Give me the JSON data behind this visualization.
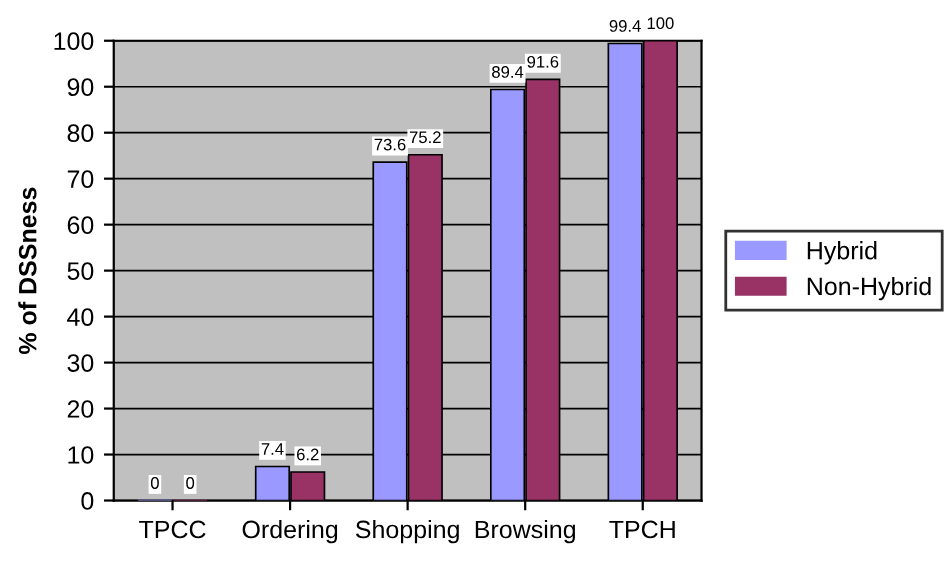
{
  "chart_data": {
    "type": "bar",
    "ylabel": "% of DSSness",
    "categories": [
      "TPCC",
      "Ordering",
      "Shopping",
      "Browsing",
      "TPCH"
    ],
    "series": [
      {
        "name": "Hybrid",
        "color": "#9999ff",
        "values": [
          0,
          7.4,
          73.6,
          89.4,
          99.4
        ]
      },
      {
        "name": "Non-Hybrid",
        "color": "#993366",
        "values": [
          0,
          6.2,
          75.2,
          91.6,
          100
        ]
      }
    ],
    "ylim": [
      0,
      100
    ],
    "yticks": [
      0,
      10,
      20,
      30,
      40,
      50,
      60,
      70,
      80,
      90,
      100
    ],
    "grid": "y",
    "legend": "right",
    "data_labels": true
  }
}
